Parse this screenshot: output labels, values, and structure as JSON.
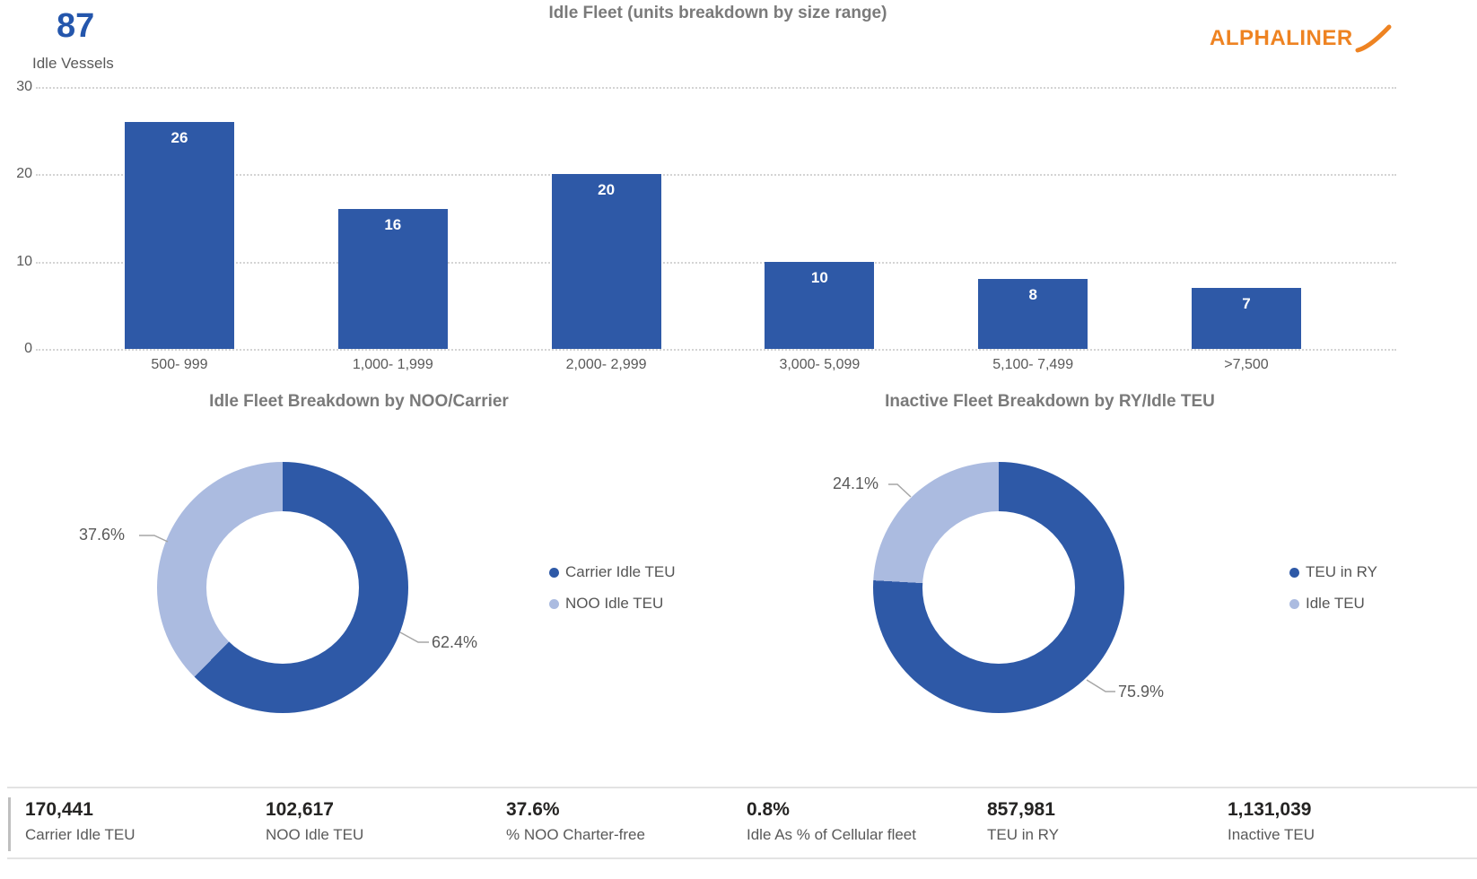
{
  "header": {
    "idle_vessels_value": "87",
    "idle_vessels_label": "Idle Vessels",
    "logo_text": "ALPHALINER"
  },
  "colors": {
    "primary_blue": "#2E59A7",
    "light_blue": "#ABBBE0",
    "accent_blue": "#2456AC",
    "logo_orange": "#EE8322",
    "title_gray": "#7A7A7A",
    "label_gray": "#595959",
    "gridline_gray": "#D4D4D4",
    "bar_value_label": "#FFFFFF"
  },
  "chart_data": [
    {
      "type": "bar",
      "title": "Idle Fleet (units breakdown by size range)",
      "ylabel": "Idle Vessels",
      "categories": [
        "500- 999",
        "1,000- 1,999",
        "2,000- 2,999",
        "3,000- 5,099",
        "5,100- 7,499",
        ">7,500"
      ],
      "values": [
        26,
        16,
        20,
        10,
        8,
        7
      ],
      "ylim": [
        0,
        30
      ],
      "yticks": [
        0,
        10,
        20,
        30
      ],
      "grid": "dotted-horizontal",
      "bar_color": "#2E59A7"
    },
    {
      "type": "pie",
      "subtype": "donut",
      "title": "Idle Fleet Breakdown by NOO/Carrier",
      "labels": [
        "Carrier Idle TEU",
        "NOO Idle TEU"
      ],
      "values": [
        62.4,
        37.6
      ],
      "value_labels": [
        "62.4%",
        "37.6%"
      ],
      "colors": [
        "#2E59A7",
        "#ABBBE0"
      ],
      "legend_position": "right"
    },
    {
      "type": "pie",
      "subtype": "donut",
      "title": "Inactive Fleet Breakdown by RY/Idle TEU",
      "labels": [
        "TEU in RY",
        "Idle TEU"
      ],
      "values": [
        75.9,
        24.1
      ],
      "value_labels": [
        "75.9%",
        "24.1%"
      ],
      "colors": [
        "#2E59A7",
        "#ABBBE0"
      ],
      "legend_position": "right"
    }
  ],
  "kpis": [
    {
      "value": "170,441",
      "label": "Carrier Idle TEU"
    },
    {
      "value": "102,617",
      "label": "NOO Idle TEU"
    },
    {
      "value": "37.6%",
      "label": "% NOO Charter-free"
    },
    {
      "value": "0.8%",
      "label": "Idle As % of Cellular fleet"
    },
    {
      "value": "857,981",
      "label": "TEU in RY"
    },
    {
      "value": "1,131,039",
      "label": "Inactive TEU"
    }
  ]
}
